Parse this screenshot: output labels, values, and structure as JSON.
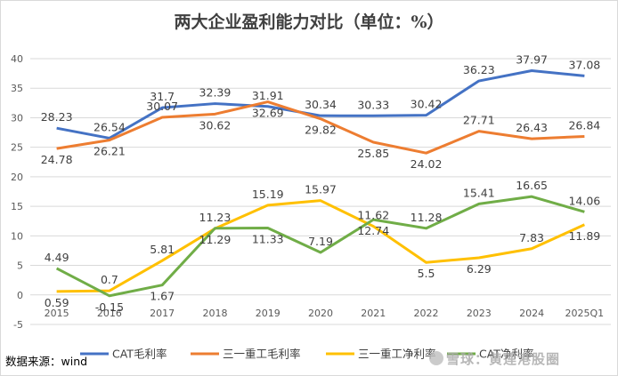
{
  "chart_data": {
    "type": "line",
    "title": "两大企业盈利能力对比（单位：%）",
    "categories": [
      "2015",
      "2016",
      "2017",
      "2018",
      "2019",
      "2020",
      "2021",
      "2022",
      "2023",
      "2024",
      "2025Q1"
    ],
    "ylim": [
      -5,
      40
    ],
    "yticks": [
      -5,
      0,
      5,
      10,
      15,
      20,
      25,
      30,
      35,
      40
    ],
    "grid": true,
    "legend_position": "bottom",
    "series": [
      {
        "name": "CAT毛利率",
        "color": "#4472C4",
        "values": [
          28.23,
          26.54,
          31.7,
          32.39,
          31.91,
          30.34,
          30.33,
          30.42,
          36.23,
          37.97,
          37.08
        ]
      },
      {
        "name": "三一重工毛利率",
        "color": "#ED7D31",
        "values": [
          24.78,
          26.21,
          30.07,
          30.62,
          32.69,
          29.82,
          25.85,
          24.02,
          27.71,
          26.43,
          26.84
        ]
      },
      {
        "name": "三一重工净利率",
        "color": "#FFC000",
        "values": [
          0.59,
          0.7,
          5.81,
          11.23,
          15.19,
          15.97,
          11.62,
          5.5,
          6.29,
          7.83,
          11.89
        ]
      },
      {
        "name": "CAT净利率",
        "color": "#70AD47",
        "values": [
          4.49,
          -0.15,
          1.67,
          11.29,
          11.33,
          7.19,
          12.74,
          11.28,
          15.41,
          16.65,
          14.06
        ]
      }
    ]
  },
  "source": "数据来源：wind",
  "watermark": "雪球：黄莲港股圈"
}
